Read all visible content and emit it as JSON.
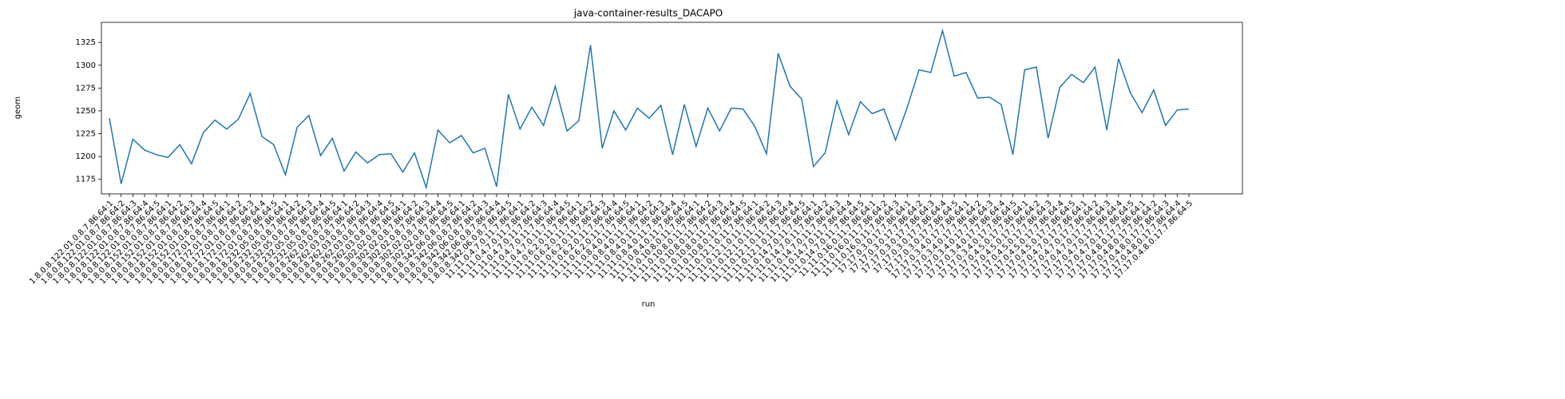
{
  "chart_data": {
    "type": "line",
    "title": "java-container-results_DACAPO",
    "xlabel": "run",
    "ylabel": "geom",
    "categories": [
      "1.8.0.8.122.01.0.8.7.86.64:1",
      "1.8.0.8.122.01.0.8.7.86.64:2",
      "1.8.0.8.122.01.0.8.7.86.64:3",
      "1.8.0.8.122.01.0.8.7.86.64:4",
      "1.8.0.8.122.01.0.8.7.86.64:5",
      "1.8.0.8.152.01.0.8.7.86.64:1",
      "1.8.0.8.152.01.0.8.7.86.64:2",
      "1.8.0.8.152.01.0.8.7.86.64:3",
      "1.8.0.8.152.01.0.8.7.86.64:4",
      "1.8.0.8.152.01.0.8.7.86.64:5",
      "1.8.0.8.172.01.0.8.7.86.64:1",
      "1.8.0.8.172.01.0.8.7.86.64:2",
      "1.8.0.8.172.01.0.8.7.86.64:3",
      "1.8.0.8.172.01.0.8.7.86.64:4",
      "1.8.0.8.172.01.0.8.7.86.64:5",
      "1.8.0.8.232.05.0.8.7.86.64:1",
      "1.8.0.8.232.05.0.8.7.86.64:2",
      "1.8.0.8.232.05.0.8.7.86.64:3",
      "1.8.0.8.232.05.0.8.7.86.64:4",
      "1.8.0.8.232.05.0.8.7.86.64:5",
      "1.8.0.8.262.03.0.8.7.86.64:1",
      "1.8.0.8.262.03.0.8.7.86.64:2",
      "1.8.0.8.262.03.0.8.7.86.64:3",
      "1.8.0.8.262.03.0.8.7.86.64:4",
      "1.8.0.8.262.03.0.8.7.86.64:5",
      "1.8.0.8.302.02.0.8.7.86.64:1",
      "1.8.0.8.302.02.0.8.7.86.64:2",
      "1.8.0.8.302.02.0.8.7.86.64:3",
      "1.8.0.8.302.02.0.8.7.86.64:4",
      "1.8.0.8.302.02.0.8.7.86.64:5",
      "1.8.0.8.342.06.0.8.7.86.64:1",
      "1.8.0.8.342.06.0.8.7.86.64:2",
      "1.8.0.8.342.06.0.8.7.86.64:3",
      "1.8.0.8.342.06.0.8.7.86.64:4",
      "1.8.0.8.342.06.0.8.7.86.64:5",
      "11.11.0.4.7.0.11.7.86.64:1",
      "11.11.0.4.7.0.11.7.86.64:2",
      "11.11.0.4.7.0.11.7.86.64:3",
      "11.11.0.4.7.0.11.7.86.64:4",
      "11.11.0.4.7.0.11.7.86.64:5",
      "11.11.0.6.2.0.11.7.86.64:1",
      "11.11.0.6.2.0.11.7.86.64:2",
      "11.11.0.6.2.0.11.7.86.64:3",
      "11.11.0.6.2.0.11.7.86.64:4",
      "11.11.0.6.2.0.11.7.86.64:5",
      "11.11.0.8.4.0.11.7.86.64:1",
      "11.11.0.8.4.0.11.7.86.64:2",
      "11.11.0.8.4.0.11.7.86.64:3",
      "11.11.0.8.4.0.11.7.86.64:4",
      "11.11.0.8.4.0.11.7.86.64:5",
      "11.11.0.10.8.0.11.7.86.64:1",
      "11.11.0.10.8.0.11.7.86.64:2",
      "11.11.0.10.8.0.11.7.86.64:3",
      "11.11.0.10.8.0.11.7.86.64:4",
      "11.11.0.10.8.0.11.7.86.64:5",
      "11.11.0.12.1.0.11.7.86.64:1",
      "11.11.0.12.1.0.11.7.86.64:2",
      "11.11.0.12.1.0.11.7.86.64:3",
      "11.11.0.12.1.0.11.7.86.64:4",
      "11.11.0.12.1.0.11.7.86.64:5",
      "11.11.0.14.7.0.11.7.86.64:1",
      "11.11.0.14.7.0.11.7.86.64:2",
      "11.11.0.14.7.0.11.7.86.64:3",
      "11.11.0.14.7.0.11.7.86.64:4",
      "11.11.0.14.7.0.11.7.86.64:5",
      "11.11.0.16.0.11.7.86.64:1",
      "11.11.0.16.0.11.7.86.64:2",
      "11.11.0.16.0.11.7.86.64:3",
      "17.17.0.3.0.17.7.86.64:1",
      "17.17.0.3.0.17.7.86.64:2",
      "17.17.0.3.0.17.7.86.64:3",
      "17.17.0.3.0.17.7.86.64:4",
      "17.17.0.3.0.17.7.86.64:5",
      "17.17.0.3.4.0.17.7.86.64:1",
      "17.17.0.3.4.0.17.7.86.64:2",
      "17.17.0.3.4.0.17.7.86.64:3",
      "17.17.0.3.4.0.17.7.86.64:4",
      "17.17.0.3.4.0.17.7.86.64:5",
      "17.17.0.4.5.0.17.7.86.64:1",
      "17.17.0.4.5.0.17.7.86.64:2",
      "17.17.0.4.5.0.17.7.86.64:3",
      "17.17.0.4.5.0.17.7.86.64:4",
      "17.17.0.4.5.0.17.7.86.64:5",
      "17.17.0.4.7.0.17.7.86.64:1",
      "17.17.0.4.7.0.17.7.86.64:2",
      "17.17.0.4.7.0.17.7.86.64:3",
      "17.17.0.4.7.0.17.7.86.64:4",
      "17.17.0.4.7.0.17.7.86.64:5",
      "17.17.0.4.8.0.17.7.86.64:1",
      "17.17.0.4.8.0.17.7.86.64:2",
      "17.17.0.4.8.0.17.7.86.64:3",
      "17.17.0.4.8.0.17.7.86.64:4",
      "17.17.0.4.8.0.17.7.86.64:5"
    ],
    "values": [
      1242,
      1170,
      1219,
      1207,
      1202,
      1199,
      1213,
      1192,
      1226,
      1240,
      1230,
      1241,
      1269,
      1222,
      1213,
      1180,
      1232,
      1245,
      1201,
      1220,
      1184,
      1205,
      1193,
      1202,
      1203,
      1183,
      1204,
      1166,
      1229,
      1215,
      1223,
      1204,
      1209,
      1167,
      1268,
      1230,
      1254,
      1234,
      1277,
      1228,
      1239,
      1322,
      1209,
      1250,
      1229,
      1253,
      1242,
      1256,
      1202,
      1257,
      1211,
      1253,
      1228,
      1253,
      1252,
      1233,
      1203,
      1313,
      1277,
      1263,
      1189,
      1204,
      1261,
      1224,
      1260,
      1247,
      1252,
      1218,
      1254,
      1295,
      1292,
      1338,
      1288,
      1292,
      1264,
      1265,
      1257,
      1202,
      1295,
      1298,
      1220,
      1276,
      1290,
      1281,
      1298,
      1229,
      1307,
      1270,
      1248,
      1273,
      1234,
      1251,
      1252
    ],
    "color": "#1f77b4",
    "ylim": [
      1159,
      1347
    ],
    "yticks": [
      1175,
      1200,
      1225,
      1250,
      1275,
      1300,
      1325
    ]
  }
}
